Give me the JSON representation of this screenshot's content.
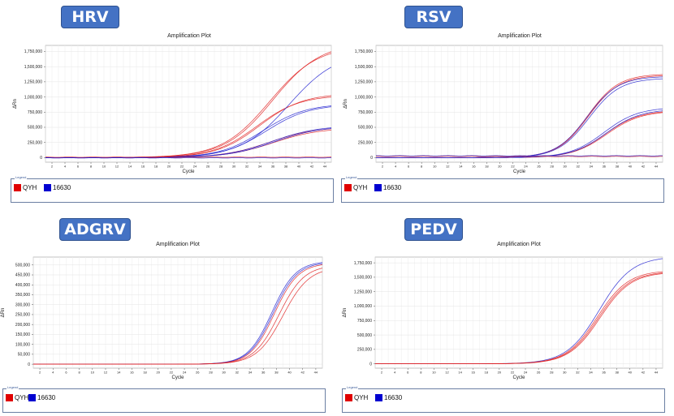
{
  "legend": {
    "caption": "Legend",
    "entries": [
      {
        "label": "QYH",
        "color": "#e00000"
      },
      {
        "label": "16630",
        "color": "#0000d0"
      }
    ]
  },
  "chart_data": [
    {
      "type": "line",
      "badge": "HRV",
      "title": "Amplification Plot",
      "xlabel": "Cycle",
      "ylabel": "ΔRn",
      "xlim": [
        1,
        45
      ],
      "ylim": [
        -75000,
        1850000
      ],
      "xticks": [
        2,
        4,
        6,
        8,
        10,
        12,
        14,
        16,
        18,
        20,
        22,
        24,
        26,
        28,
        30,
        32,
        34,
        36,
        38,
        40,
        42,
        44
      ],
      "yticks": [
        0,
        250000,
        500000,
        750000,
        1000000,
        1250000,
        1500000,
        1750000
      ],
      "ytick_labels": [
        "0",
        "250,000",
        "500,000",
        "750,000",
        "1,000,000",
        "1,250,000",
        "1,500,000",
        "1,750,000"
      ],
      "grid": true,
      "series": [
        {
          "color": "#e02020",
          "plateau": 1850000,
          "mid": 35.5,
          "slope": 0.27
        },
        {
          "color": "#e02020",
          "plateau": 1900000,
          "mid": 36,
          "slope": 0.27
        },
        {
          "color": "#e02020",
          "plateau": 1030000,
          "mid": 33.5,
          "slope": 0.3
        },
        {
          "color": "#e02020",
          "plateau": 1060000,
          "mid": 34,
          "slope": 0.3
        },
        {
          "color": "#e02020",
          "plateau": 510000,
          "mid": 35.5,
          "slope": 0.28
        },
        {
          "color": "#e02020",
          "plateau": 490000,
          "mid": 36,
          "slope": 0.28
        },
        {
          "color": "#2020d0",
          "plateau": 1750000,
          "mid": 38.5,
          "slope": 0.27
        },
        {
          "color": "#2020d0",
          "plateau": 880000,
          "mid": 35,
          "slope": 0.3
        },
        {
          "color": "#2020d0",
          "plateau": 890000,
          "mid": 34.5,
          "slope": 0.3
        },
        {
          "color": "#2020d0",
          "plateau": 530000,
          "mid": 35.8,
          "slope": 0.28
        },
        {
          "color": "#2020d0",
          "plateau": 520000,
          "mid": 36.2,
          "slope": 0.28
        },
        {
          "color": "#e02020",
          "flat": true,
          "level": 8000
        },
        {
          "color": "#2020d0",
          "flat": true,
          "level": -4000
        }
      ]
    },
    {
      "type": "line",
      "badge": "RSV",
      "title": "Amplification Plot",
      "xlabel": "Cycle",
      "ylabel": "ΔRn",
      "xlim": [
        1,
        45
      ],
      "ylim": [
        -75000,
        1850000
      ],
      "xticks": [
        2,
        4,
        6,
        8,
        10,
        12,
        14,
        16,
        18,
        20,
        22,
        24,
        26,
        28,
        30,
        32,
        34,
        36,
        38,
        40,
        42,
        44
      ],
      "yticks": [
        0,
        250000,
        500000,
        750000,
        1000000,
        1250000,
        1500000,
        1750000
      ],
      "ytick_labels": [
        "0",
        "250,000",
        "500,000",
        "750,000",
        "1,000,000",
        "1,250,000",
        "1,500,000",
        "1,750,000"
      ],
      "grid": true,
      "series": [
        {
          "color": "#e02020",
          "plateau": 1380000,
          "mid": 33.5,
          "slope": 0.42
        },
        {
          "color": "#e02020",
          "plateau": 1360000,
          "mid": 33.6,
          "slope": 0.42
        },
        {
          "color": "#2020d0",
          "plateau": 1340000,
          "mid": 33.4,
          "slope": 0.42
        },
        {
          "color": "#2020d0",
          "plateau": 1310000,
          "mid": 33.7,
          "slope": 0.42
        },
        {
          "color": "#e02020",
          "plateau": 780000,
          "mid": 36.2,
          "slope": 0.38
        },
        {
          "color": "#e02020",
          "plateau": 770000,
          "mid": 36.4,
          "slope": 0.38
        },
        {
          "color": "#2020d0",
          "plateau": 830000,
          "mid": 36,
          "slope": 0.38
        },
        {
          "color": "#2020d0",
          "plateau": 800000,
          "mid": 36.3,
          "slope": 0.38
        },
        {
          "color": "#e02020",
          "flat": true,
          "level": 20000
        },
        {
          "color": "#2020d0",
          "flat": true,
          "level": 30000
        }
      ]
    },
    {
      "type": "line",
      "badge": "ADGRV",
      "title": "Amplification Plot",
      "xlabel": "Cycle",
      "ylabel": "ΔRn",
      "xlim": [
        1,
        45
      ],
      "ylim": [
        -20000,
        540000
      ],
      "xticks": [
        2,
        4,
        6,
        8,
        10,
        12,
        14,
        16,
        18,
        20,
        22,
        24,
        26,
        28,
        30,
        32,
        34,
        36,
        38,
        40,
        42,
        44
      ],
      "yticks": [
        0,
        50000,
        100000,
        150000,
        200000,
        250000,
        300000,
        350000,
        400000,
        450000,
        500000
      ],
      "ytick_labels": [
        "0",
        "50,000",
        "100,000",
        "150,000",
        "200,000",
        "250,000",
        "300,000",
        "350,000",
        "400,000",
        "450,000",
        "500,000"
      ],
      "grid": true,
      "series": [
        {
          "color": "#2020d0",
          "plateau": 520000,
          "mid": 37.3,
          "slope": 0.55
        },
        {
          "color": "#2020d0",
          "plateau": 515000,
          "mid": 37.5,
          "slope": 0.55
        },
        {
          "color": "#e02020",
          "plateau": 510000,
          "mid": 37.7,
          "slope": 0.55
        },
        {
          "color": "#e02020",
          "plateau": 500000,
          "mid": 38.4,
          "slope": 0.52
        },
        {
          "color": "#e02020",
          "plateau": 490000,
          "mid": 39.0,
          "slope": 0.5
        }
      ]
    },
    {
      "type": "line",
      "badge": "PEDV",
      "title": "Amplification Plot",
      "xlabel": "Cycle",
      "ylabel": "ΔRn",
      "xlim": [
        1,
        45
      ],
      "ylim": [
        -75000,
        1850000
      ],
      "xticks": [
        2,
        4,
        6,
        8,
        10,
        12,
        14,
        16,
        18,
        20,
        22,
        24,
        26,
        28,
        30,
        32,
        34,
        36,
        38,
        40,
        42,
        44
      ],
      "yticks": [
        0,
        250000,
        500000,
        750000,
        1000000,
        1250000,
        1500000,
        1750000
      ],
      "ytick_labels": [
        "0",
        "250,000",
        "500,000",
        "750,000",
        "1,000,000",
        "1,250,000",
        "1,500,000",
        "1,750,000"
      ],
      "grid": true,
      "series": [
        {
          "color": "#2020d0",
          "plateau": 1860000,
          "mid": 35.3,
          "slope": 0.4
        },
        {
          "color": "#e02020",
          "plateau": 1620000,
          "mid": 35.0,
          "slope": 0.42
        },
        {
          "color": "#e02020",
          "plateau": 1600000,
          "mid": 35.2,
          "slope": 0.42
        },
        {
          "color": "#e02020",
          "plateau": 1590000,
          "mid": 35.4,
          "slope": 0.42
        }
      ]
    }
  ]
}
